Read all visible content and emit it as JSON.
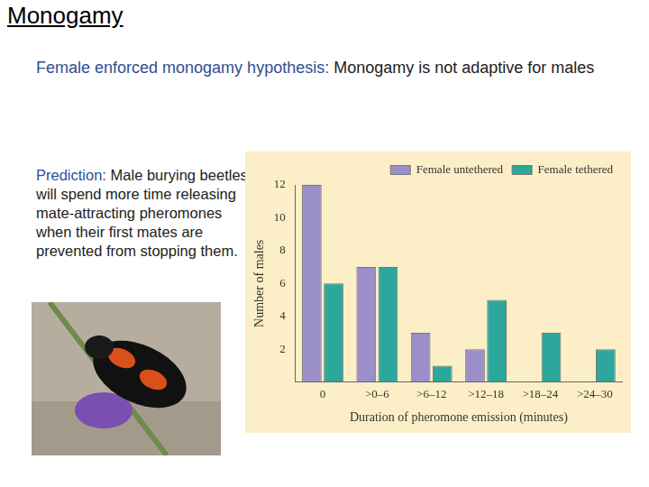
{
  "slide": {
    "title": "Monogamy",
    "hypothesis_label": "Female enforced monogamy hypothesis:",
    "hypothesis_text": "Monogamy is not adaptive for males",
    "prediction_label": "Prediction:",
    "prediction_text": "Male burying beetles will spend more time releasing mate-attracting pheromones when their first mates are prevented from stopping them."
  },
  "chart_data": {
    "type": "bar",
    "x_label": "Duration of pheromone emission (minutes)",
    "y_label": "Number of males",
    "categories": [
      "0",
      ">0–6",
      ">6–12",
      ">12–18",
      ">18–24",
      ">24–30"
    ],
    "series": [
      {
        "name": "Female untethered",
        "color": "#9a8fc8",
        "values": [
          12,
          7,
          3,
          2,
          0,
          0
        ]
      },
      {
        "name": "Female tethered",
        "color": "#2ba89b",
        "values": [
          6,
          7,
          1,
          5,
          3,
          2
        ]
      }
    ],
    "ylim": [
      0,
      12
    ],
    "yticks": [
      2,
      4,
      6,
      8,
      10,
      12
    ],
    "grid": false,
    "legend": "top-right"
  }
}
